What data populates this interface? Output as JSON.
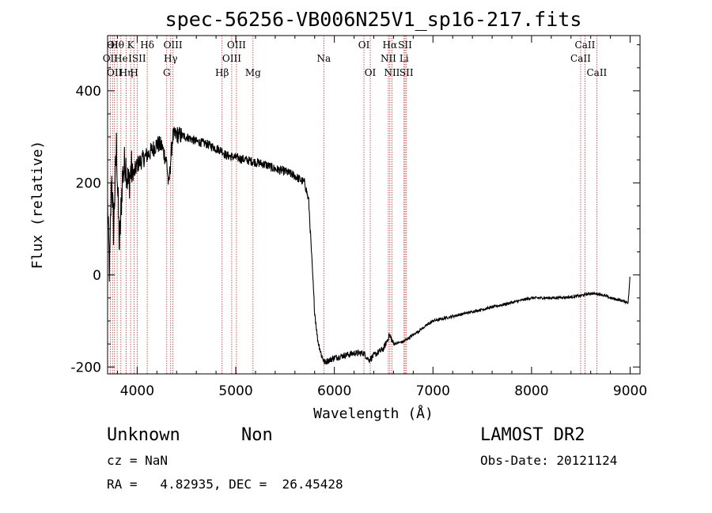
{
  "chart_data": {
    "type": "line",
    "title": "spec-56256-VB006N25V1_sp16-217.fits",
    "xlabel": "Wavelength (Å)",
    "ylabel": "Flux (relative)",
    "xlim": [
      3700,
      9100
    ],
    "ylim": [
      -215,
      520
    ],
    "xticks": [
      4000,
      5000,
      6000,
      7000,
      8000,
      9000
    ],
    "yticks": [
      -200,
      0,
      200,
      400
    ],
    "xtick_labels": [
      "4000",
      "5000",
      "6000",
      "7000",
      "8000",
      "9000"
    ],
    "ytick_labels": [
      "-200",
      "0",
      "200",
      "400"
    ],
    "grid": false,
    "series": [
      {
        "x": [
          3700,
          3720,
          3740,
          3760,
          3790,
          3820,
          3850,
          3880,
          3910,
          3940,
          3970,
          4000,
          4050,
          4100,
          4150,
          4200,
          4250,
          4300,
          4320,
          4340,
          4360,
          4400,
          4500,
          4600,
          4700,
          4800,
          4860,
          4900,
          5000,
          5100,
          5200,
          5300,
          5400,
          5500,
          5600,
          5700,
          5740,
          5760,
          5780,
          5800,
          5830,
          5870,
          5900,
          5950,
          6000,
          6100,
          6200,
          6300,
          6350,
          6400,
          6500,
          6560,
          6600,
          6700,
          6800,
          6900,
          7000,
          7200,
          7400,
          7600,
          7800,
          8000,
          8200,
          8400,
          8500,
          8600,
          8700,
          8800,
          8900,
          8980,
          9000
        ],
        "y": [
          150,
          0,
          220,
          100,
          280,
          60,
          210,
          250,
          195,
          230,
          220,
          240,
          250,
          260,
          270,
          285,
          280,
          245,
          190,
          250,
          300,
          305,
          300,
          290,
          285,
          275,
          270,
          260,
          255,
          250,
          245,
          240,
          230,
          225,
          215,
          200,
          160,
          80,
          0,
          -80,
          -140,
          -175,
          -190,
          -185,
          -180,
          -175,
          -170,
          -170,
          -185,
          -175,
          -160,
          -130,
          -150,
          -145,
          -130,
          -115,
          -100,
          -90,
          -80,
          -70,
          -60,
          -50,
          -50,
          -48,
          -45,
          -40,
          -42,
          -50,
          -55,
          -60,
          0
        ]
      }
    ],
    "line_labels": [
      {
        "x": 3727,
        "row": 2,
        "label": "OII"
      },
      {
        "x": 3750,
        "row": 1,
        "label": "OI"
      },
      {
        "x": 3770,
        "row": 3,
        "label": "OII"
      },
      {
        "x": 3797,
        "row": 1,
        "label": "Hθ"
      },
      {
        "x": 3835,
        "row": 2,
        "label": "He"
      },
      {
        "x": 3889,
        "row": 3,
        "label": "Hη"
      },
      {
        "x": 3934,
        "row": 1,
        "label": "K"
      },
      {
        "x": 3970,
        "row": 3,
        "label": "H"
      },
      {
        "x": 4000,
        "row": 2,
        "label": "ISII"
      },
      {
        "x": 4102,
        "row": 1,
        "label": "Hδ"
      },
      {
        "x": 4300,
        "row": 3,
        "label": "G"
      },
      {
        "x": 4340,
        "row": 2,
        "label": "Hγ"
      },
      {
        "x": 4363,
        "row": 1,
        "label": "OIII"
      },
      {
        "x": 4861,
        "row": 3,
        "label": "Hβ"
      },
      {
        "x": 4959,
        "row": 2,
        "label": "OIII"
      },
      {
        "x": 5007,
        "row": 1,
        "label": "OIII"
      },
      {
        "x": 5175,
        "row": 3,
        "label": "Mg"
      },
      {
        "x": 5893,
        "row": 2,
        "label": "Na"
      },
      {
        "x": 6300,
        "row": 1,
        "label": "OI"
      },
      {
        "x": 6364,
        "row": 3,
        "label": "OI"
      },
      {
        "x": 6548,
        "row": 2,
        "label": "NII"
      },
      {
        "x": 6563,
        "row": 1,
        "label": "Hα"
      },
      {
        "x": 6584,
        "row": 3,
        "label": "NII"
      },
      {
        "x": 6707,
        "row": 2,
        "label": "Li"
      },
      {
        "x": 6717,
        "row": 1,
        "label": "SII"
      },
      {
        "x": 6731,
        "row": 3,
        "label": "SII"
      },
      {
        "x": 8498,
        "row": 2,
        "label": "CaII"
      },
      {
        "x": 8542,
        "row": 1,
        "label": "CaII"
      },
      {
        "x": 8662,
        "row": 3,
        "label": "CaII"
      }
    ]
  },
  "info": {
    "class": "Unknown",
    "subclass": "Non",
    "survey": "LAMOST DR2",
    "cz": "cz = NaN",
    "obs_date": "Obs-Date: 20121124",
    "radec": "RA =   4.82935, DEC =  26.45428"
  }
}
